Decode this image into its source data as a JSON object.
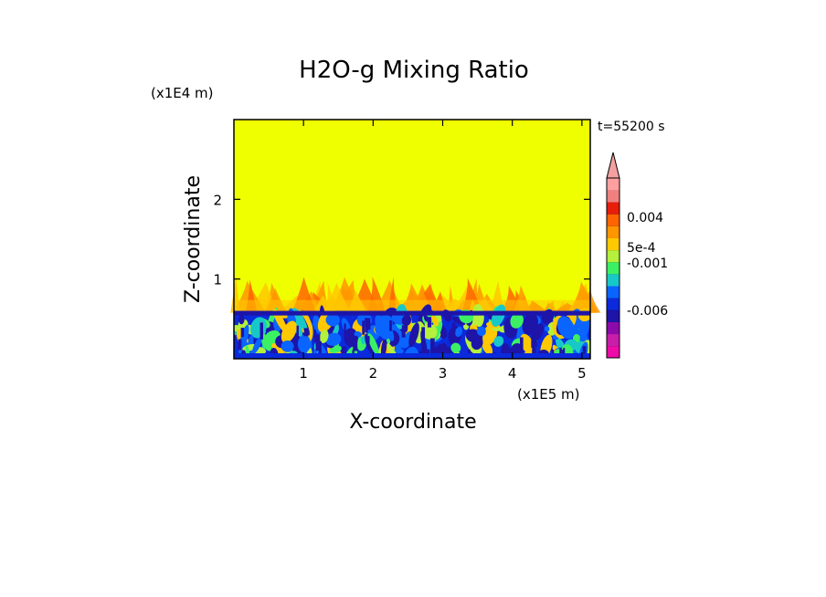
{
  "chart_data": {
    "type": "heatmap",
    "title": "H2O-g Mixing Ratio",
    "xlabel": "X-coordinate",
    "ylabel": "Z-coordinate",
    "x_scale_label": "(x1E5 m)",
    "y_scale_label": "(x1E4 m)",
    "time_label": "t=55200 s",
    "xlim": [
      0,
      5.12
    ],
    "ylim": [
      0,
      3.0
    ],
    "x_ticks": [
      "1",
      "2",
      "3",
      "4",
      "5"
    ],
    "y_ticks": [
      "1",
      "2"
    ],
    "colorbar": {
      "tick_labels": [
        "0.004",
        "5e-4",
        "-0.001",
        "-0.006"
      ],
      "extend": "max"
    },
    "field": {
      "background_value": 0,
      "moist_layer_top": 0.6,
      "plume_top": 1.05
    }
  },
  "colors": {
    "background": "#f0ff00",
    "bands": [
      "#ee0aa8",
      "#c81eaa",
      "#8c0aaa",
      "#1e14a8",
      "#0a2adc",
      "#0a64ff",
      "#18c8c8",
      "#3cf064",
      "#b4f03c",
      "#ffc800",
      "#ff9600",
      "#ff6400",
      "#e61e0a",
      "#f08080",
      "#ffa0a0"
    ],
    "extend_arrow": "#f4a0a0"
  }
}
